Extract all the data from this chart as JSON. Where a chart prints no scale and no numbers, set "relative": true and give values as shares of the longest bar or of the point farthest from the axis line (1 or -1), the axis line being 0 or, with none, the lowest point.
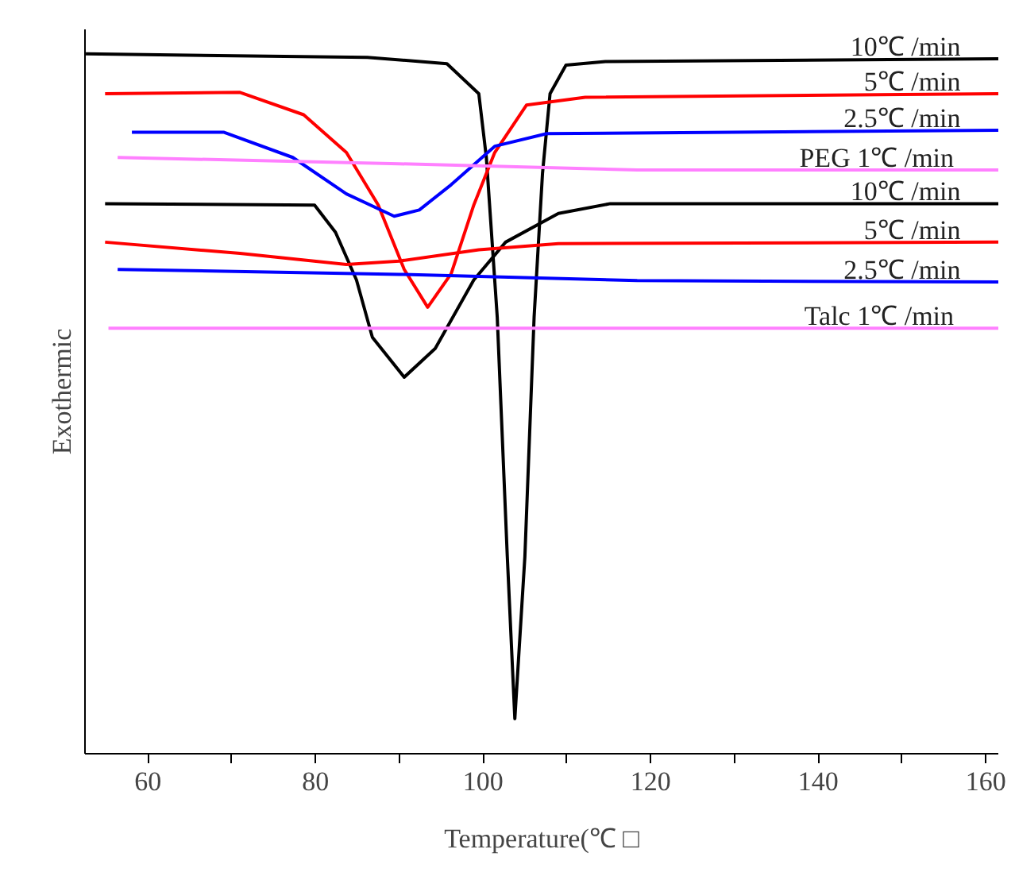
{
  "chart_data": {
    "type": "line",
    "relative": true,
    "xlabel": "Temperature(℃ □",
    "ylabel": "Exothermic",
    "xlim": [
      52.5,
      161.5
    ],
    "xticks": [
      60,
      {
        "value": 70,
        "label": null
      },
      80,
      {
        "value": 90,
        "label": null
      },
      100,
      {
        "value": 110,
        "label": null
      },
      120,
      {
        "value": 130,
        "label": null
      },
      140,
      {
        "value": 150,
        "label": null
      },
      160
    ],
    "tick_labels": "x",
    "grid": false,
    "marker": "none",
    "line_style": "solid",
    "series": [
      {
        "name": "10℃ /min",
        "color": "#000000",
        "x": [
          52.6,
          86.2,
          95.7,
          99.5,
          100.4,
          101.7,
          102.9,
          103.8,
          105.0,
          106.1,
          107.1,
          108.0,
          109.9,
          114.6,
          161.5
        ],
        "values": [
          1,
          0.995,
          0.986,
          0.943,
          0.852,
          0.624,
          0.282,
          0.05,
          0.282,
          0.624,
          0.829,
          0.943,
          0.984,
          0.989,
          0.993
        ]
      },
      {
        "name": "5℃ /min",
        "color": "#ff0000",
        "x": [
          54.9,
          71.0,
          78.6,
          83.7,
          87.5,
          90.6,
          93.4,
          96.2,
          98.9,
          101.4,
          105.2,
          112.2,
          161.5
        ],
        "values": [
          0.943,
          0.945,
          0.913,
          0.859,
          0.784,
          0.692,
          0.638,
          0.686,
          0.784,
          0.859,
          0.927,
          0.938,
          0.943
        ]
      },
      {
        "name": "2.5℃ /min",
        "color": "#0000ff",
        "x": [
          58.1,
          69.1,
          77.3,
          83.7,
          89.4,
          92.4,
          96.2,
          101.4,
          107.6,
          161.5
        ],
        "values": [
          0.888,
          0.888,
          0.852,
          0.8,
          0.768,
          0.777,
          0.813,
          0.868,
          0.886,
          0.891
        ]
      },
      {
        "name": "PEG  1℃ /min",
        "color": "#ff80ff",
        "x": [
          56.4,
          90.0,
          118.4,
          161.5
        ],
        "values": [
          0.852,
          0.843,
          0.834,
          0.834
        ]
      },
      {
        "name": "10℃ /min",
        "color": "#000000",
        "x": [
          54.9,
          79.9,
          82.4,
          84.9,
          86.8,
          90.6,
          94.3,
          98.9,
          102.7,
          109.0,
          115.2,
          161.5
        ],
        "values": [
          0.786,
          0.784,
          0.745,
          0.677,
          0.595,
          0.538,
          0.579,
          0.677,
          0.731,
          0.772,
          0.786,
          0.786
        ]
      },
      {
        "name": "5℃ /min",
        "color": "#ff0000",
        "x": [
          54.9,
          71.0,
          83.7,
          90.0,
          99.5,
          109.0,
          161.5
        ],
        "values": [
          0.731,
          0.715,
          0.699,
          0.704,
          0.72,
          0.729,
          0.731
        ]
      },
      {
        "name": "2.5℃ /min",
        "color": "#0000ff",
        "x": [
          56.4,
          90.0,
          118.4,
          161.5
        ],
        "values": [
          0.692,
          0.685,
          0.676,
          0.674
        ]
      },
      {
        "name": "Talc  1℃ /min",
        "color": "#ff80ff",
        "x": [
          55.3,
          161.5
        ],
        "values": [
          0.608,
          0.608
        ]
      }
    ]
  }
}
